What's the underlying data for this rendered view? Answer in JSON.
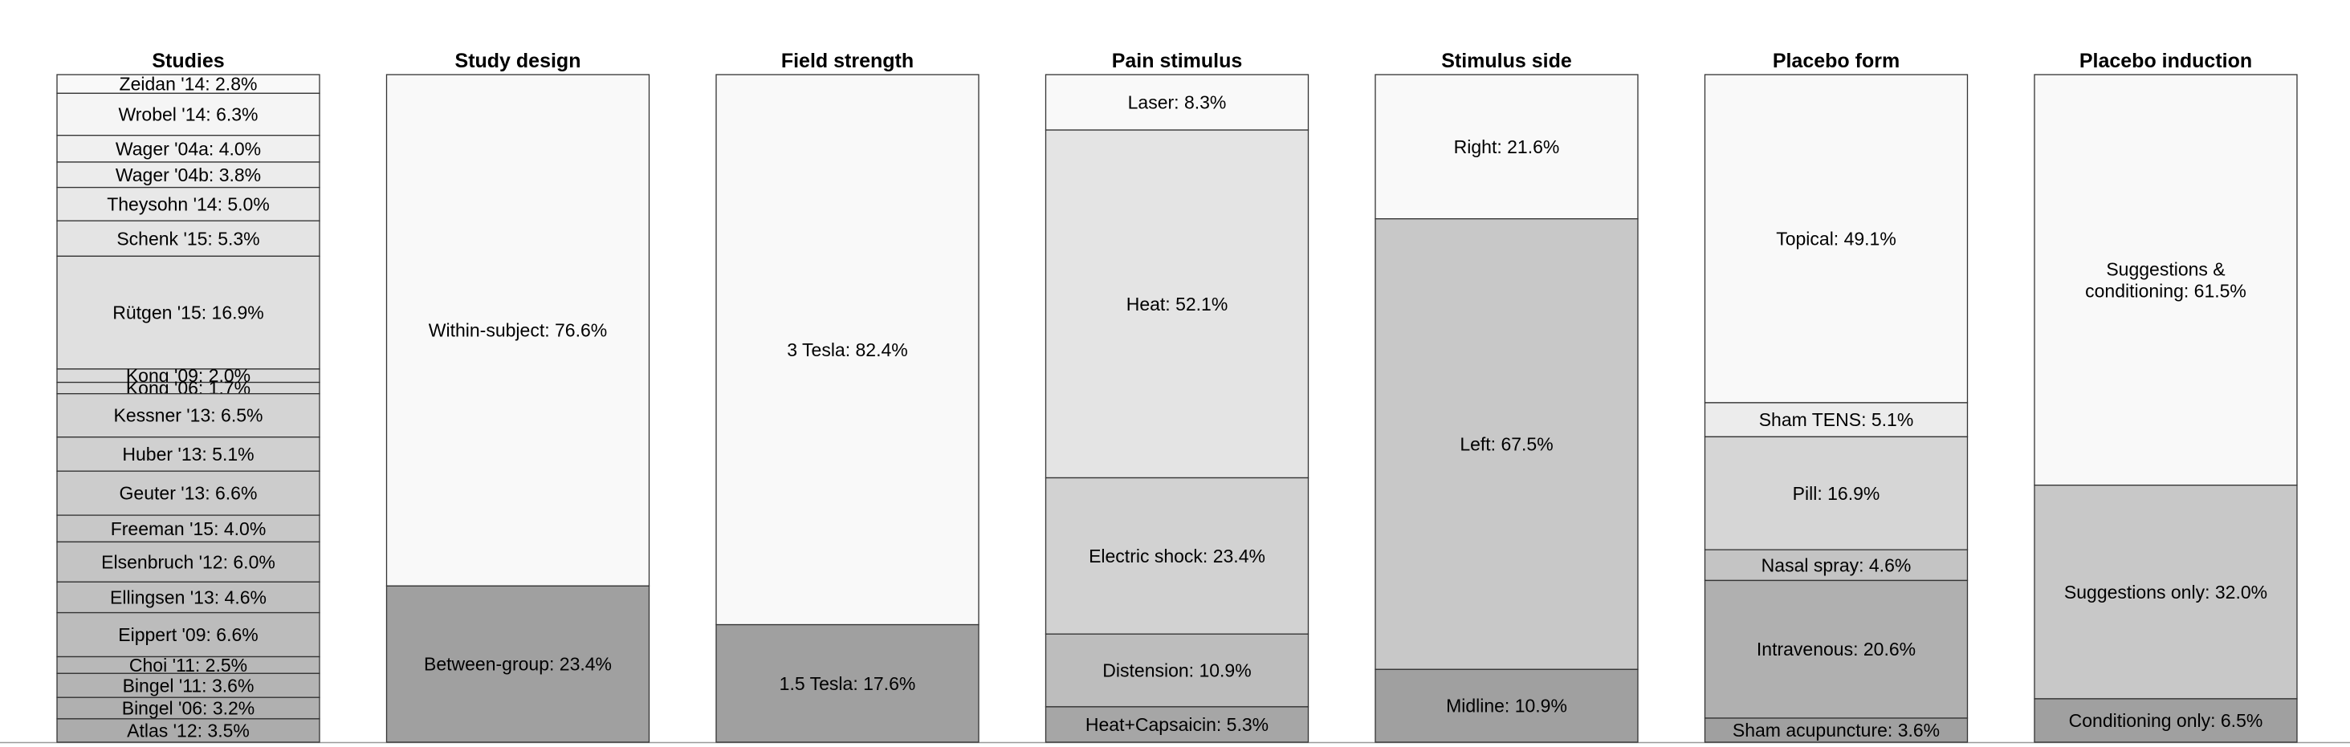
{
  "chart_data": {
    "type": "stacked-bar",
    "unit": "%",
    "columns": [
      {
        "title": "Studies",
        "segments": [
          {
            "label": "Zeidan '14: 2.8%",
            "value": 2.8,
            "color": "#f9f9f9"
          },
          {
            "label": "Wrobel '14: 6.3%",
            "value": 6.3,
            "color": "#f5f5f5"
          },
          {
            "label": "Wager '04a: 4.0%",
            "value": 4.0,
            "color": "#f0f0f0"
          },
          {
            "label": "Wager '04b: 3.8%",
            "value": 3.8,
            "color": "#ececec"
          },
          {
            "label": "Theysohn '14: 5.0%",
            "value": 5.0,
            "color": "#e8e8e8"
          },
          {
            "label": "Schenk '15: 5.3%",
            "value": 5.3,
            "color": "#e4e4e4"
          },
          {
            "label": "Rütgen '15: 16.9%",
            "value": 16.9,
            "color": "#e0e0e0"
          },
          {
            "label": "Kong '09: 2.0%",
            "value": 2.0,
            "color": "#dcdcdc"
          },
          {
            "label": "Kong '06: 1.7%",
            "value": 1.7,
            "color": "#d8d8d8"
          },
          {
            "label": "Kessner '13: 6.5%",
            "value": 6.5,
            "color": "#d4d4d4"
          },
          {
            "label": "Huber '13: 5.1%",
            "value": 5.1,
            "color": "#d0d0d0"
          },
          {
            "label": "Geuter '13: 6.6%",
            "value": 6.6,
            "color": "#cccccc"
          },
          {
            "label": "Freeman '15: 4.0%",
            "value": 4.0,
            "color": "#c8c8c8"
          },
          {
            "label": "Elsenbruch '12: 6.0%",
            "value": 6.0,
            "color": "#c4c4c4"
          },
          {
            "label": "Ellingsen '13: 4.6%",
            "value": 4.6,
            "color": "#c0c0c0"
          },
          {
            "label": "Eippert '09: 6.6%",
            "value": 6.6,
            "color": "#bcbcbc"
          },
          {
            "label": "Choi '11: 2.5%",
            "value": 2.5,
            "color": "#b8b8b8"
          },
          {
            "label": "Bingel '11: 3.6%",
            "value": 3.6,
            "color": "#b4b4b4"
          },
          {
            "label": "Bingel '06: 3.2%",
            "value": 3.2,
            "color": "#b0b0b0"
          },
          {
            "label": "Atlas '12: 3.5%",
            "value": 3.5,
            "color": "#acacac"
          }
        ]
      },
      {
        "title": "Study design",
        "segments": [
          {
            "label": "Within-subject: 76.6%",
            "value": 76.6,
            "color": "#f9f9f9"
          },
          {
            "label": "Between-group: 23.4%",
            "value": 23.4,
            "color": "#a0a0a0"
          }
        ]
      },
      {
        "title": "Field strength",
        "segments": [
          {
            "label": "3 Tesla: 82.4%",
            "value": 82.4,
            "color": "#f9f9f9"
          },
          {
            "label": "1.5 Tesla: 17.6%",
            "value": 17.6,
            "color": "#a0a0a0"
          }
        ]
      },
      {
        "title": "Pain stimulus",
        "segments": [
          {
            "label": "Laser: 8.3%",
            "value": 8.3,
            "color": "#f9f9f9"
          },
          {
            "label": "Heat: 52.1%",
            "value": 52.1,
            "color": "#e4e4e4"
          },
          {
            "label": "Electric shock: 23.4%",
            "value": 23.4,
            "color": "#d2d2d2"
          },
          {
            "label": "Distension: 10.9%",
            "value": 10.9,
            "color": "#bdbdbd"
          },
          {
            "label": "Heat+Capsaicin: 5.3%",
            "value": 5.3,
            "color": "#a6a6a6"
          }
        ]
      },
      {
        "title": "Stimulus side",
        "segments": [
          {
            "label": "Right: 21.6%",
            "value": 21.6,
            "color": "#f9f9f9"
          },
          {
            "label": "Left: 67.5%",
            "value": 67.5,
            "color": "#c8c8c8"
          },
          {
            "label": "Midline: 10.9%",
            "value": 10.9,
            "color": "#a0a0a0"
          }
        ]
      },
      {
        "title": "Placebo form",
        "segments": [
          {
            "label": "Topical: 49.1%",
            "value": 49.1,
            "color": "#f9f9f9"
          },
          {
            "label": "Sham TENS: 5.1%",
            "value": 5.1,
            "color": "#ececec"
          },
          {
            "label": "Pill: 16.9%",
            "value": 16.9,
            "color": "#d6d6d6"
          },
          {
            "label": "Nasal spray: 4.6%",
            "value": 4.6,
            "color": "#c4c4c4"
          },
          {
            "label": "Intravenous: 20.6%",
            "value": 20.6,
            "color": "#b0b0b0"
          },
          {
            "label": "Sham acupuncture: 3.6%",
            "value": 3.6,
            "color": "#a0a0a0"
          }
        ]
      },
      {
        "title": "Placebo induction",
        "segments": [
          {
            "label": "Suggestions & conditioning: 61.5%",
            "value": 61.5,
            "color": "#f9f9f9"
          },
          {
            "label": "Suggestions only: 32.0%",
            "value": 32.0,
            "color": "#c8c8c8"
          },
          {
            "label": "Conditioning only: 6.5%",
            "value": 6.5,
            "color": "#a0a0a0"
          }
        ]
      }
    ]
  }
}
